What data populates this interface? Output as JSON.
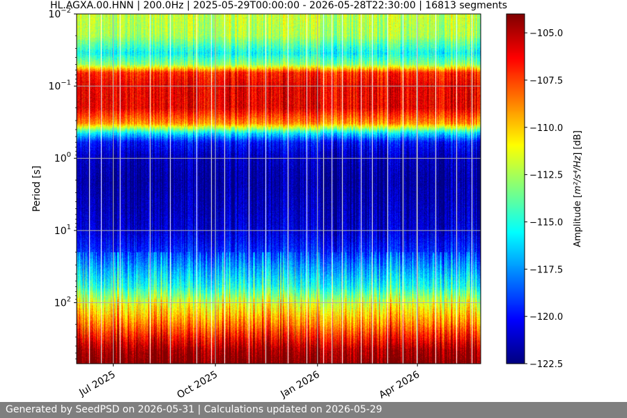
{
  "footer": {
    "generated_text": "Generated by SeedPSD on 2026-05-31 | Calculations updated on 2026-05-29"
  },
  "chart_data": {
    "type": "heatmap",
    "title": "HL.AGXA.00.HNN | 200.0Hz | 2025-05-29T00:00:00 - 2026-05-28T22:30:00 | 16813 segments",
    "xlabel": "",
    "ylabel": "Period [s]",
    "y_scale": "log",
    "y_inverted": true,
    "ylim": [
      0.01,
      700
    ],
    "xlim": [
      "2025-05-29",
      "2026-05-28"
    ],
    "x_ticks": [
      {
        "date": "2025-07-01",
        "label": "Jul 2025"
      },
      {
        "date": "2025-10-01",
        "label": "Oct 2025"
      },
      {
        "date": "2026-01-01",
        "label": "Jan 2026"
      },
      {
        "date": "2026-04-01",
        "label": "Apr 2026"
      }
    ],
    "y_ticks": [
      {
        "value": 0.01,
        "base": "10",
        "exp": "−2"
      },
      {
        "value": 0.1,
        "base": "10",
        "exp": "−1"
      },
      {
        "value": 1,
        "base": "10",
        "exp": "0"
      },
      {
        "value": 10,
        "base": "10",
        "exp": "1"
      },
      {
        "value": 100,
        "base": "10",
        "exp": "2"
      }
    ],
    "grid": true,
    "colormap": "jet",
    "colorbar": {
      "label_prefix": "Amplitude [",
      "label_unit": "m²/s⁴/Hz",
      "label_suffix": "] [dB]",
      "range": [
        -122.5,
        -104
      ],
      "ticks": [
        "−105.0",
        "−107.5",
        "−110.0",
        "−112.5",
        "−115.0",
        "−117.5",
        "−120.0",
        "−122.5"
      ],
      "tick_values": [
        -105,
        -107.5,
        -110,
        -112.5,
        -115,
        -117.5,
        -120,
        -122.5
      ]
    },
    "period_profile": {
      "periods": [
        0.01,
        0.02,
        0.035,
        0.05,
        0.065,
        0.1,
        0.2,
        0.33,
        0.45,
        0.6,
        1,
        2,
        5,
        10,
        20,
        30,
        60,
        100,
        200,
        300,
        450,
        700
      ],
      "amplitude_db": [
        -112,
        -112.5,
        -115.5,
        -113,
        -107,
        -106,
        -106,
        -109,
        -116,
        -120,
        -121.5,
        -122,
        -121.5,
        -121,
        -119.5,
        -118,
        -115.5,
        -112,
        -109,
        -107,
        -105,
        -104
      ]
    },
    "data_gaps": [
      "2025-06-09",
      "2025-06-20",
      "2025-07-07",
      "2025-08-03",
      "2025-08-21",
      "2025-09-14",
      "2025-09-27",
      "2025-10-09",
      "2025-10-31",
      "2025-11-15",
      "2025-12-05",
      "2025-12-22",
      "2026-01-06",
      "2026-01-14",
      "2026-01-23",
      "2026-02-09",
      "2026-02-19",
      "2026-03-05",
      "2026-03-19",
      "2026-03-31",
      "2026-04-17",
      "2026-05-06",
      "2026-05-20"
    ]
  }
}
